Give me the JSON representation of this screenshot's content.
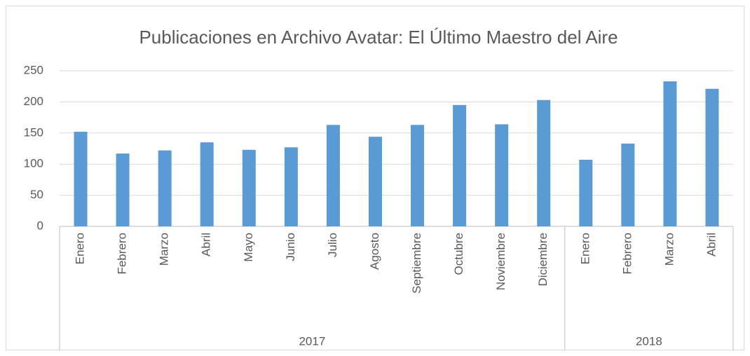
{
  "chart_data": {
    "type": "bar",
    "title": "Publicaciones en Archivo Avatar: El Último Maestro del Aire",
    "groups": [
      {
        "name": "2017",
        "categories": [
          "Enero",
          "Febrero",
          "Marzo",
          "Abril",
          "Mayo",
          "Junio",
          "Julio",
          "Agosto",
          "Septiembre",
          "Octubre",
          "Noviembre",
          "Diciembre"
        ]
      },
      {
        "name": "2018",
        "categories": [
          "Enero",
          "Febrero",
          "Marzo",
          "Abril"
        ]
      }
    ],
    "values": [
      152,
      117,
      122,
      135,
      123,
      127,
      163,
      144,
      163,
      195,
      164,
      203,
      107,
      133,
      233,
      221
    ],
    "color": "#5b9bd5",
    "ylim": [
      0,
      250
    ],
    "yticks": [
      0,
      50,
      100,
      150,
      200,
      250
    ],
    "grid": true
  }
}
